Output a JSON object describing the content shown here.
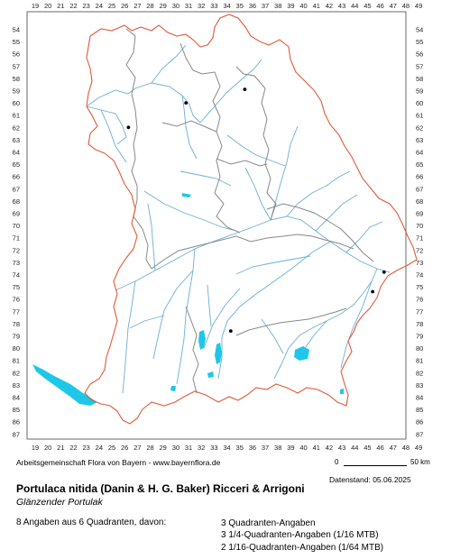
{
  "map": {
    "x_labels": [
      "19",
      "20",
      "21",
      "22",
      "23",
      "24",
      "25",
      "26",
      "27",
      "28",
      "29",
      "30",
      "31",
      "32",
      "33",
      "34",
      "35",
      "36",
      "37",
      "38",
      "39",
      "40",
      "41",
      "42",
      "43",
      "44",
      "45",
      "46",
      "47",
      "48",
      "49"
    ],
    "y_labels": [
      "54",
      "55",
      "56",
      "57",
      "58",
      "59",
      "60",
      "61",
      "62",
      "63",
      "64",
      "65",
      "66",
      "67",
      "68",
      "69",
      "70",
      "71",
      "72",
      "73",
      "74",
      "75",
      "76",
      "77",
      "78",
      "79",
      "80",
      "81",
      "82",
      "83",
      "84",
      "85",
      "86",
      "87"
    ],
    "occurrences": [
      {
        "x": 35.4,
        "y": 58.9
      },
      {
        "x": 30.8,
        "y": 60.0
      },
      {
        "x": 26.3,
        "y": 62.0
      },
      {
        "x": 46.3,
        "y": 73.8
      },
      {
        "x": 45.4,
        "y": 75.4
      },
      {
        "x": 34.3,
        "y": 78.6
      }
    ],
    "colors": {
      "border": "#e05a3a",
      "district": "#888888",
      "river": "#6aaed6",
      "lake": "#1ec7e8",
      "marker": "#000000",
      "grid_frame": "#444444"
    }
  },
  "footer": {
    "credit": "Arbeitsgemeinschaft Flora von Bayern - www.bayernflora.de",
    "scale_zero": "0",
    "scale_label": "50 km",
    "datestand": "Datenstand: 05.06.2025",
    "species": "Portulaca nitida (Danin & H. G. Baker) Ricceri & Arrigoni",
    "common_name": "Glänzender Portulak",
    "summary": "8 Angaben aus 6 Quadranten, davon:",
    "stats": [
      "3 Quadranten-Angaben",
      "3 1/4-Quadranten-Angaben (1/16 MTB)",
      "2 1/16-Quadranten-Angaben (1/64 MTB)"
    ]
  }
}
